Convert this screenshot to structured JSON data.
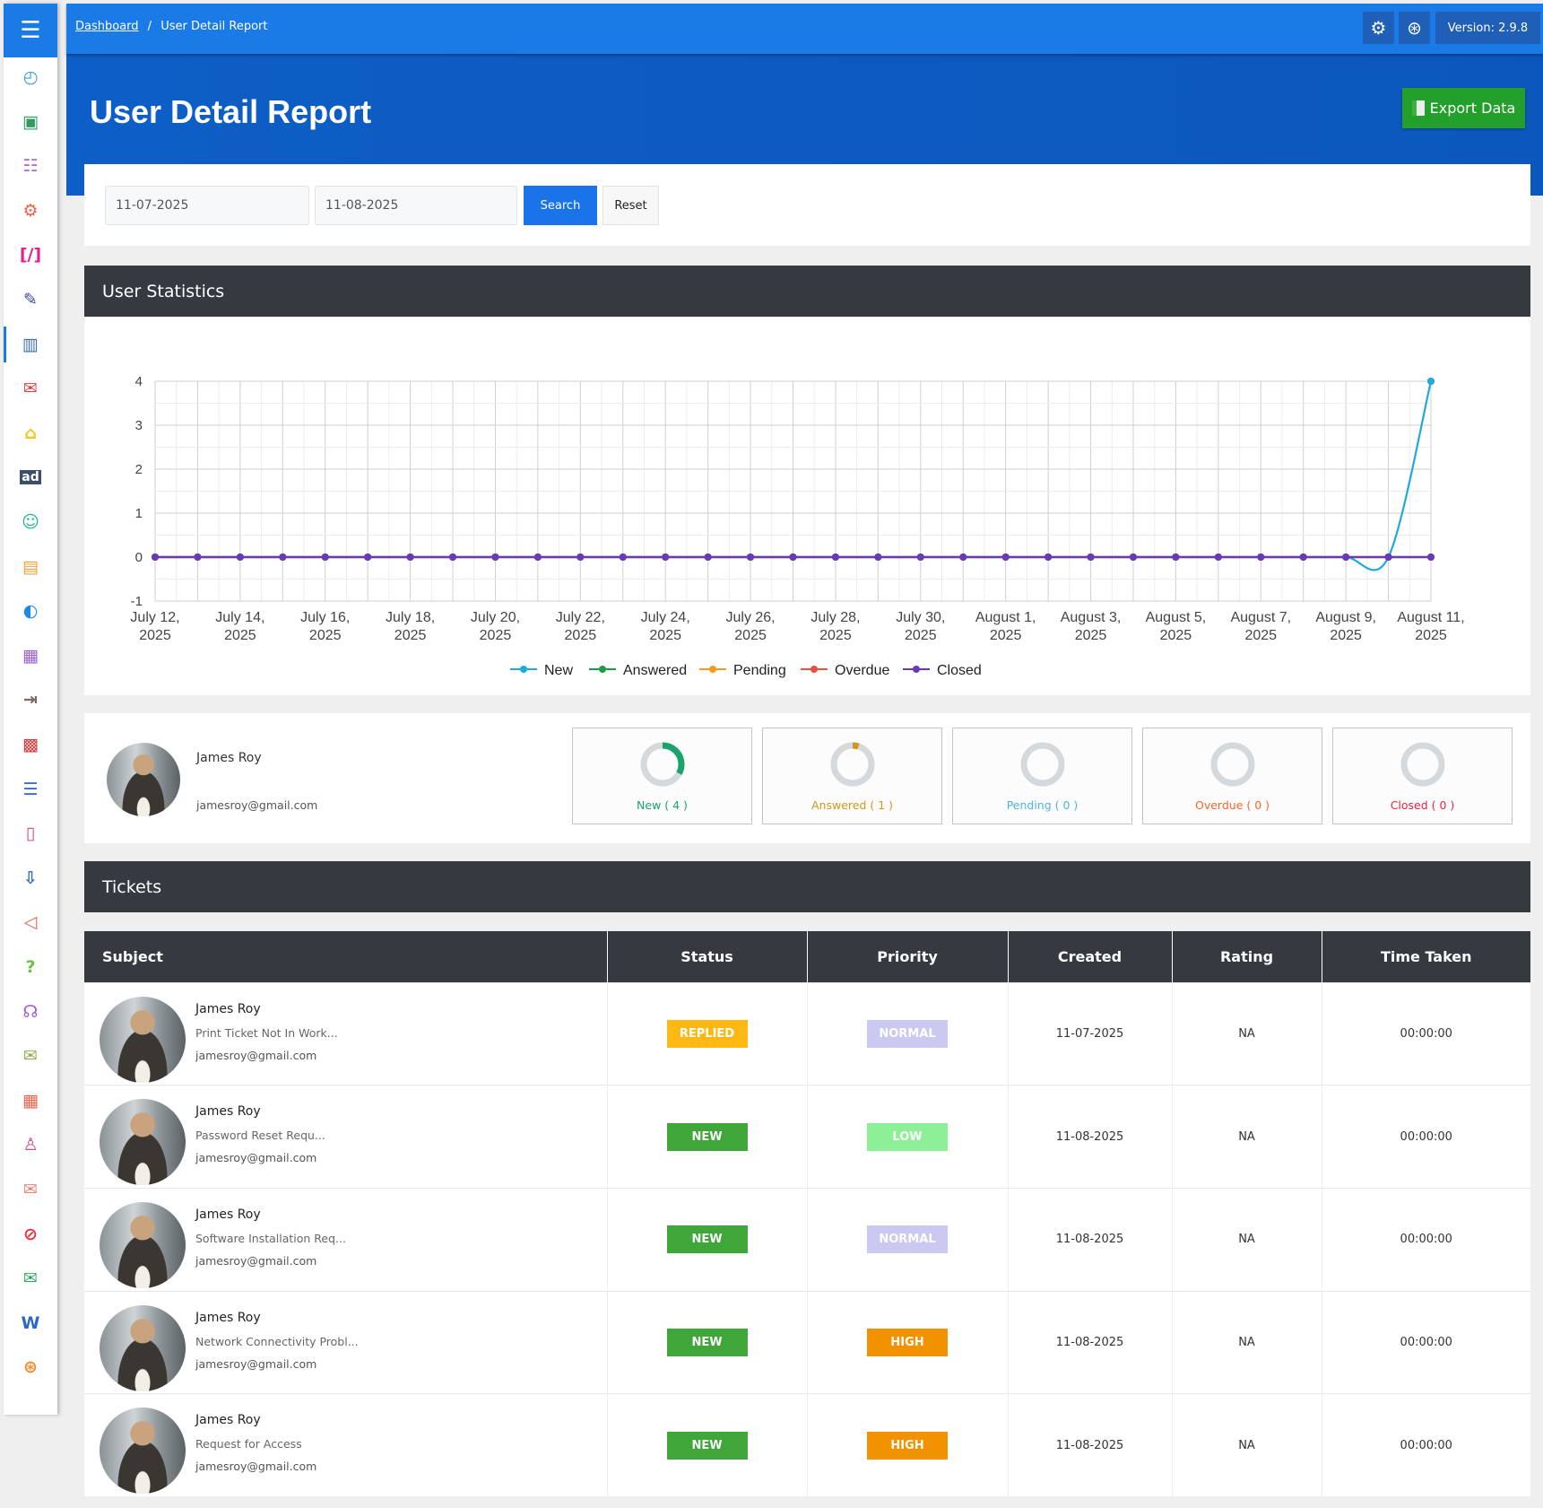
{
  "sidebar": {
    "menu_icon": "hamburger-icon",
    "items": [
      {
        "icon": "dashboard-icon",
        "glyph": "◴",
        "color": "#3a9ad9"
      },
      {
        "icon": "ticket-icon",
        "glyph": "▣",
        "color": "#2e9e5e"
      },
      {
        "icon": "users-icon",
        "glyph": "☷",
        "color": "#b06fdc"
      },
      {
        "icon": "settings-icon",
        "glyph": "⚙",
        "color": "#f0604d"
      },
      {
        "icon": "custom-code-icon",
        "glyph": "[/]",
        "color": "#e91e8c"
      },
      {
        "icon": "brush-icon",
        "glyph": "✎",
        "color": "#3b4ba6"
      },
      {
        "icon": "reports-chart-icon",
        "glyph": "▥",
        "color": "#3a6ec0",
        "active": true
      },
      {
        "icon": "email-template-icon",
        "glyph": "✉",
        "color": "#e8403c"
      },
      {
        "icon": "lock-icon",
        "glyph": "⌂",
        "color": "#f5c518"
      },
      {
        "icon": "ad-icon",
        "glyph": "ad",
        "color": "#3d4f66"
      },
      {
        "icon": "smiley-icon",
        "glyph": "☺",
        "color": "#1fb89a"
      },
      {
        "icon": "id-badge-icon",
        "glyph": "▤",
        "color": "#f5a03c"
      },
      {
        "icon": "contrast-icon",
        "glyph": "◐",
        "color": "#1e88e5"
      },
      {
        "icon": "analytics-icon",
        "glyph": "▦",
        "color": "#9c5fd0"
      },
      {
        "icon": "import-icon",
        "glyph": "⇥",
        "color": "#7a6a60"
      },
      {
        "icon": "archive-icon",
        "glyph": "▩",
        "color": "#d9383a"
      },
      {
        "icon": "list-icon",
        "glyph": "☰",
        "color": "#3a6ec0"
      },
      {
        "icon": "book-icon",
        "glyph": "▯",
        "color": "#d14a8a"
      },
      {
        "icon": "download-icon",
        "glyph": "⇩",
        "color": "#2a67c9"
      },
      {
        "icon": "megaphone-icon",
        "glyph": "◁",
        "color": "#f0604d"
      },
      {
        "icon": "question-icon",
        "glyph": "?",
        "color": "#6cbf4a"
      },
      {
        "icon": "headset-icon",
        "glyph": "☊",
        "color": "#a25ad6"
      },
      {
        "icon": "open-mail-icon",
        "glyph": "✉",
        "color": "#8ab04a"
      },
      {
        "icon": "spreadsheet-icon",
        "glyph": "▦",
        "color": "#f0604d"
      },
      {
        "icon": "user-tag-icon",
        "glyph": "♙",
        "color": "#d04a8a"
      },
      {
        "icon": "mail-icon",
        "glyph": "✉",
        "color": "#f2816a"
      },
      {
        "icon": "block-icon",
        "glyph": "⊘",
        "color": "#e8303c"
      },
      {
        "icon": "cc-mail-icon",
        "glyph": "✉",
        "color": "#2ea85a"
      },
      {
        "icon": "word-doc-icon",
        "glyph": "W",
        "color": "#2a67c9"
      },
      {
        "icon": "lifebuoy-icon",
        "glyph": "⊛",
        "color": "#f58a2a"
      }
    ]
  },
  "topbar": {
    "breadcrumb_home": "Dashboard",
    "breadcrumb_sep": "/",
    "breadcrumb_current": "User Detail Report",
    "settings_icon": "⚙",
    "help_icon": "⊛",
    "version": "Version: 2.9.8"
  },
  "header": {
    "title": "User Detail Report",
    "export_label": "Export Data"
  },
  "filter": {
    "from_date": "11-07-2025",
    "to_date": "11-08-2025",
    "search_label": "Search",
    "reset_label": "Reset"
  },
  "stats_section": {
    "title": "User Statistics"
  },
  "chart_data": {
    "type": "line",
    "x": [
      "July 12, 2025",
      "July 13, 2025",
      "July 14, 2025",
      "July 15, 2025",
      "July 16, 2025",
      "July 17, 2025",
      "July 18, 2025",
      "July 19, 2025",
      "July 20, 2025",
      "July 21, 2025",
      "July 22, 2025",
      "July 23, 2025",
      "July 24, 2025",
      "July 25, 2025",
      "July 26, 2025",
      "July 27, 2025",
      "July 28, 2025",
      "July 29, 2025",
      "July 30, 2025",
      "July 31, 2025",
      "August 1, 2025",
      "August 2, 2025",
      "August 3, 2025",
      "August 4, 2025",
      "August 5, 2025",
      "August 6, 2025",
      "August 7, 2025",
      "August 8, 2025",
      "August 9, 2025",
      "August 10, 2025",
      "August 11, 2025"
    ],
    "x_tick_labels": [
      [
        "July 12,",
        "2025"
      ],
      [
        "July 14,",
        "2025"
      ],
      [
        "July 16,",
        "2025"
      ],
      [
        "July 18,",
        "2025"
      ],
      [
        "July 20,",
        "2025"
      ],
      [
        "July 22,",
        "2025"
      ],
      [
        "July 24,",
        "2025"
      ],
      [
        "July 26,",
        "2025"
      ],
      [
        "July 28,",
        "2025"
      ],
      [
        "July 30,",
        "2025"
      ],
      [
        "August 1,",
        "2025"
      ],
      [
        "August 3,",
        "2025"
      ],
      [
        "August 5,",
        "2025"
      ],
      [
        "August 7,",
        "2025"
      ],
      [
        "August 9,",
        "2025"
      ],
      [
        "August 11,",
        "2025"
      ]
    ],
    "y_ticks": [
      "4",
      "3",
      "2",
      "1",
      "0",
      "-1"
    ],
    "ylim": [
      -1,
      4
    ],
    "grid": true,
    "legend_position": "bottom",
    "series": [
      {
        "name": "New",
        "color": "#1fa9dc",
        "values": [
          0,
          0,
          0,
          0,
          0,
          0,
          0,
          0,
          0,
          0,
          0,
          0,
          0,
          0,
          0,
          0,
          0,
          0,
          0,
          0,
          0,
          0,
          0,
          0,
          0,
          0,
          0,
          0,
          0,
          0,
          4
        ]
      },
      {
        "name": "Answered",
        "color": "#1e9a4c",
        "values": [
          0,
          0,
          0,
          0,
          0,
          0,
          0,
          0,
          0,
          0,
          0,
          0,
          0,
          0,
          0,
          0,
          0,
          0,
          0,
          0,
          0,
          0,
          0,
          0,
          0,
          0,
          0,
          0,
          0,
          0,
          0
        ]
      },
      {
        "name": "Pending",
        "color": "#f29b1d",
        "values": [
          0,
          0,
          0,
          0,
          0,
          0,
          0,
          0,
          0,
          0,
          0,
          0,
          0,
          0,
          0,
          0,
          0,
          0,
          0,
          0,
          0,
          0,
          0,
          0,
          0,
          0,
          0,
          0,
          0,
          0,
          0
        ]
      },
      {
        "name": "Overdue",
        "color": "#e8503f",
        "values": [
          0,
          0,
          0,
          0,
          0,
          0,
          0,
          0,
          0,
          0,
          0,
          0,
          0,
          0,
          0,
          0,
          0,
          0,
          0,
          0,
          0,
          0,
          0,
          0,
          0,
          0,
          0,
          0,
          0,
          0,
          0
        ]
      },
      {
        "name": "Closed",
        "color": "#673ab7",
        "values": [
          0,
          0,
          0,
          0,
          0,
          0,
          0,
          0,
          0,
          0,
          0,
          0,
          0,
          0,
          0,
          0,
          0,
          0,
          0,
          0,
          0,
          0,
          0,
          0,
          0,
          0,
          0,
          0,
          0,
          0,
          0
        ]
      }
    ]
  },
  "profile": {
    "name": "James Roy",
    "email": "jamesroy@gmail.com",
    "stats": [
      {
        "label": "New ( 4 )",
        "color": "#1aa36b",
        "fraction": 0.33
      },
      {
        "label": "Answered ( 1 )",
        "color": "#d4961a",
        "fraction": 0.05
      },
      {
        "label": "Pending ( 0 )",
        "color": "#4db3e6",
        "fraction": 0
      },
      {
        "label": "Overdue ( 0 )",
        "color": "#f5672b",
        "fraction": 0
      },
      {
        "label": "Closed ( 0 )",
        "color": "#e8233d",
        "fraction": 0
      }
    ]
  },
  "tickets": {
    "title": "Tickets",
    "columns": [
      "Subject",
      "Status",
      "Priority",
      "Created",
      "Rating",
      "Time Taken"
    ],
    "rows": [
      {
        "name": "James Roy",
        "subject": "Print Ticket Not In Work...",
        "email": "jamesroy@gmail.com",
        "status": "REPLIED",
        "status_color": "#fdb813",
        "priority": "NORMAL",
        "priority_color": "#c9c9f2",
        "created": "11-07-2025",
        "rating": "NA",
        "time": "00:00:00"
      },
      {
        "name": "James Roy",
        "subject": "Password Reset Requ...",
        "email": "jamesroy@gmail.com",
        "status": "NEW",
        "status_color": "#3fa63a",
        "priority": "LOW",
        "priority_color": "#8ef096",
        "created": "11-08-2025",
        "rating": "NA",
        "time": "00:00:00"
      },
      {
        "name": "James Roy",
        "subject": "Software Installation Req...",
        "email": "jamesroy@gmail.com",
        "status": "NEW",
        "status_color": "#3fa63a",
        "priority": "NORMAL",
        "priority_color": "#c9c9f2",
        "created": "11-08-2025",
        "rating": "NA",
        "time": "00:00:00"
      },
      {
        "name": "James Roy",
        "subject": "Network Connectivity Probl...",
        "email": "jamesroy@gmail.com",
        "status": "NEW",
        "status_color": "#3fa63a",
        "priority": "HIGH",
        "priority_color": "#f39200",
        "created": "11-08-2025",
        "rating": "NA",
        "time": "00:00:00"
      },
      {
        "name": "James Roy",
        "subject": "Request for Access",
        "email": "jamesroy@gmail.com",
        "status": "NEW",
        "status_color": "#3fa63a",
        "priority": "HIGH",
        "priority_color": "#f39200",
        "created": "11-08-2025",
        "rating": "NA",
        "time": "00:00:00"
      }
    ]
  }
}
